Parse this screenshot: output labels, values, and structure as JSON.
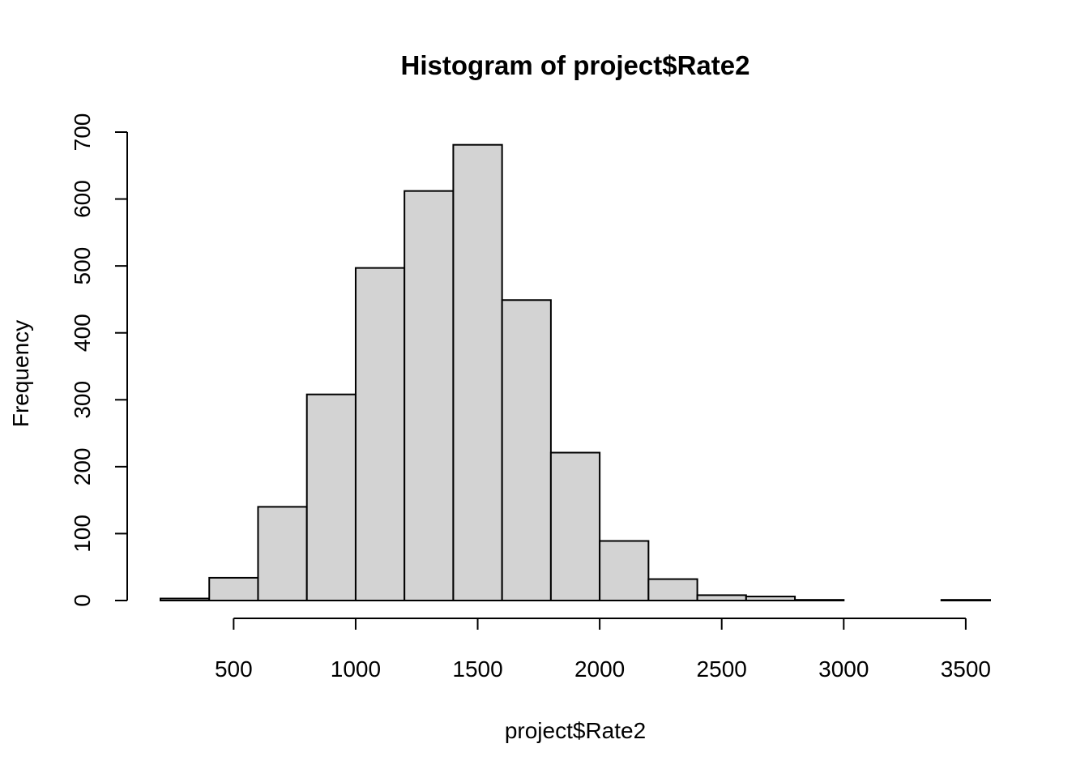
{
  "chart_data": {
    "type": "bar",
    "title": "Histogram of project$Rate2",
    "xlabel": "project$Rate2",
    "ylabel": "Frequency",
    "bin_edges": [
      200,
      400,
      600,
      800,
      1000,
      1200,
      1400,
      1600,
      1800,
      2000,
      2200,
      2400,
      2600,
      2800,
      3000,
      3200,
      3400,
      3600
    ],
    "values": [
      3,
      34,
      140,
      308,
      497,
      612,
      681,
      449,
      221,
      89,
      32,
      8,
      6,
      1,
      0,
      0,
      1
    ],
    "xticks": [
      500,
      1000,
      1500,
      2000,
      2500,
      3000,
      3500
    ],
    "xtick_labels": [
      "500",
      "1000",
      "1500",
      "2000",
      "2500",
      "3000",
      "3500"
    ],
    "yticks": [
      0,
      100,
      200,
      300,
      400,
      500,
      600,
      700
    ],
    "ytick_labels": [
      "0",
      "100",
      "200",
      "300",
      "400",
      "500",
      "600",
      "700"
    ],
    "xlim": [
      200,
      3600
    ],
    "ylim": [
      0,
      700
    ],
    "grid": false,
    "legend": "none",
    "colors": {
      "bar_fill": "#d3d3d3",
      "bar_stroke": "#000000",
      "background": "#ffffff"
    }
  }
}
